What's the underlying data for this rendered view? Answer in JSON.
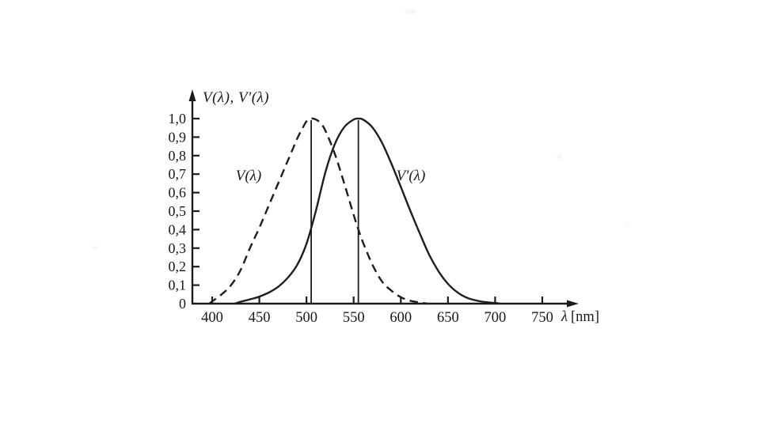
{
  "chart_data": {
    "type": "line",
    "title": "V(λ), V′(λ)",
    "ylabel": "V(λ), V′(λ)",
    "xlabel": "λ [nm]",
    "x_unit_lambda": "λ",
    "x_unit_bracket": "[nm]",
    "xlim": [
      400,
      750
    ],
    "ylim": [
      0,
      1.0
    ],
    "grid": false,
    "legend_position": "none",
    "x_ticks": [
      400,
      450,
      500,
      550,
      600,
      650,
      700,
      750
    ],
    "y_ticks": [
      {
        "value": 1.0,
        "label": "1,0"
      },
      {
        "value": 0.9,
        "label": "0,9"
      },
      {
        "value": 0.8,
        "label": "0,8"
      },
      {
        "value": 0.7,
        "label": "0,7"
      },
      {
        "value": 0.6,
        "label": "0,6"
      },
      {
        "value": 0.5,
        "label": "0,5"
      },
      {
        "value": 0.4,
        "label": "0,4"
      },
      {
        "value": 0.3,
        "label": "0,3"
      },
      {
        "value": 0.2,
        "label": "0,2"
      },
      {
        "value": 0.1,
        "label": "0,1"
      },
      {
        "value": 0.0,
        "label": "0"
      }
    ],
    "series": [
      {
        "name": "V(λ)",
        "style": "dashed",
        "peak_nm": 505,
        "points": [
          [
            397,
            0.0
          ],
          [
            400,
            0.012
          ],
          [
            410,
            0.05
          ],
          [
            420,
            0.1
          ],
          [
            430,
            0.18
          ],
          [
            440,
            0.3
          ],
          [
            450,
            0.41
          ],
          [
            460,
            0.53
          ],
          [
            470,
            0.65
          ],
          [
            480,
            0.77
          ],
          [
            490,
            0.89
          ],
          [
            495,
            0.94
          ],
          [
            500,
            0.985
          ],
          [
            505,
            1.0
          ],
          [
            510,
            0.995
          ],
          [
            515,
            0.975
          ],
          [
            520,
            0.935
          ],
          [
            530,
            0.81
          ],
          [
            540,
            0.65
          ],
          [
            550,
            0.48
          ],
          [
            555,
            0.4
          ],
          [
            560,
            0.33
          ],
          [
            570,
            0.21
          ],
          [
            580,
            0.12
          ],
          [
            590,
            0.07
          ],
          [
            600,
            0.035
          ],
          [
            610,
            0.016
          ],
          [
            620,
            0.006
          ],
          [
            628,
            0.0
          ]
        ]
      },
      {
        "name": "V′(λ)",
        "style": "solid",
        "peak_nm": 555,
        "points": [
          [
            424,
            0.0
          ],
          [
            430,
            0.01
          ],
          [
            440,
            0.023
          ],
          [
            450,
            0.038
          ],
          [
            460,
            0.06
          ],
          [
            470,
            0.091
          ],
          [
            480,
            0.139
          ],
          [
            490,
            0.208
          ],
          [
            500,
            0.323
          ],
          [
            510,
            0.503
          ],
          [
            520,
            0.71
          ],
          [
            530,
            0.862
          ],
          [
            540,
            0.954
          ],
          [
            550,
            0.995
          ],
          [
            555,
            1.0
          ],
          [
            560,
            0.995
          ],
          [
            570,
            0.952
          ],
          [
            580,
            0.87
          ],
          [
            590,
            0.757
          ],
          [
            600,
            0.631
          ],
          [
            610,
            0.503
          ],
          [
            620,
            0.381
          ],
          [
            630,
            0.265
          ],
          [
            640,
            0.175
          ],
          [
            650,
            0.107
          ],
          [
            660,
            0.061
          ],
          [
            670,
            0.032
          ],
          [
            680,
            0.017
          ],
          [
            690,
            0.008
          ],
          [
            700,
            0.004
          ],
          [
            705,
            0.0
          ]
        ]
      }
    ],
    "peak_marker_lines_nm": [
      505,
      555
    ],
    "curve_labels": [
      {
        "text": "V(λ)",
        "series": "dashed"
      },
      {
        "text": "V′(λ)",
        "series": "solid"
      }
    ],
    "axis_color": "#1c1c1c",
    "background": "#ffffff"
  }
}
